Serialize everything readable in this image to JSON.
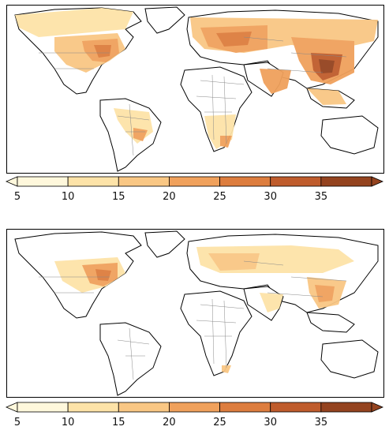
{
  "colorbar": {
    "ticks": [
      "5",
      "10",
      "15",
      "20",
      "25",
      "30",
      "35"
    ],
    "colors": [
      "#fff8dc",
      "#fde3a8",
      "#f9c784",
      "#f0a15c",
      "#dd7d3e",
      "#bf5c2c",
      "#94431f"
    ],
    "extend": "both"
  },
  "panels": [
    {
      "id": "top",
      "colorbar_ticks": [
        "5",
        "10",
        "15",
        "20",
        "25",
        "30",
        "35"
      ]
    },
    {
      "id": "bottom",
      "colorbar_ticks": [
        "5",
        "10",
        "15",
        "20",
        "25",
        "30",
        "35"
      ]
    }
  ],
  "legend_colors": {
    "level_5_10": "#fff8dc",
    "level_10_15": "#fde3a8",
    "level_15_20": "#f9c784",
    "level_20_25": "#f0a15c",
    "level_25_30": "#dd7d3e",
    "level_30_35": "#bf5c2c",
    "level_over_35": "#94431f"
  }
}
